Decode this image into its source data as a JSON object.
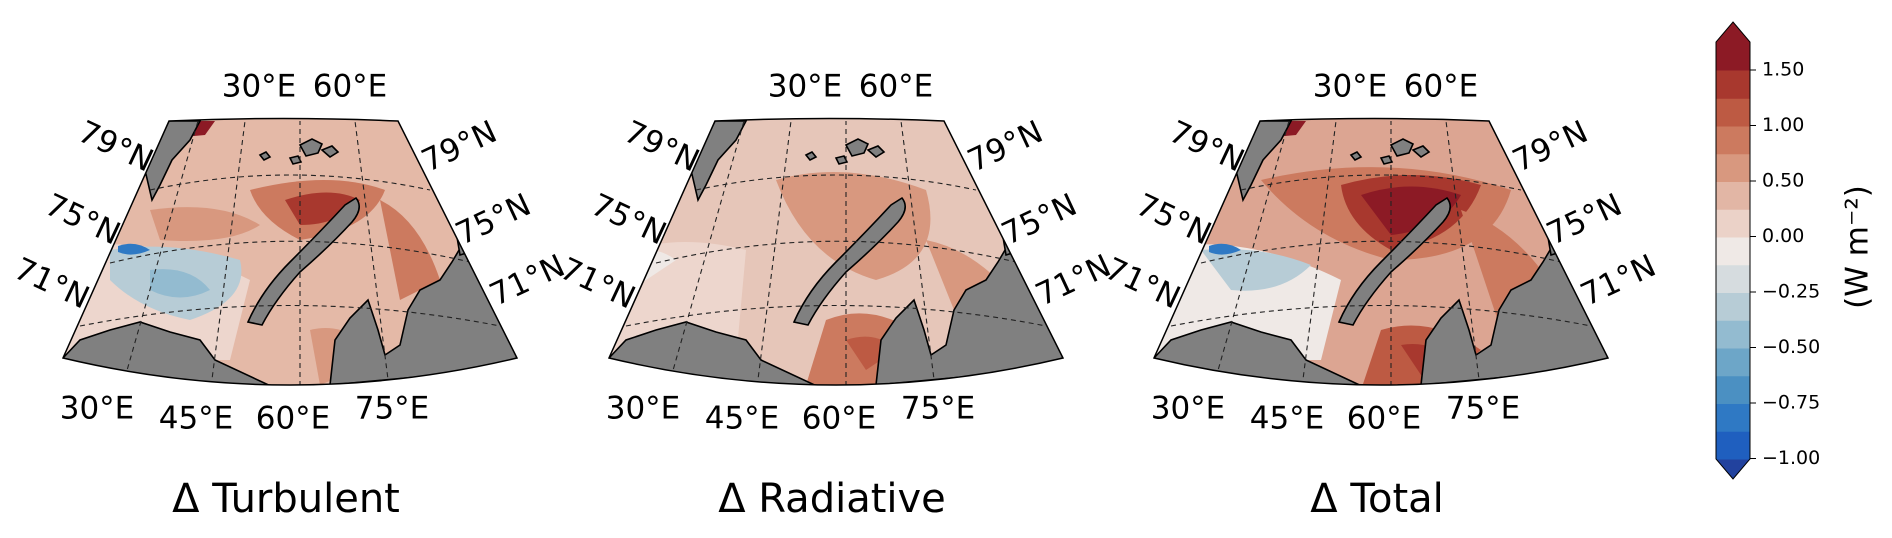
{
  "panels": [
    {
      "title": "Δ Turbulent",
      "top_lon": [
        "30°E",
        "60°E"
      ],
      "bottom_lon": [
        "30°E",
        "45°E",
        "60°E",
        "75°E"
      ],
      "left_lat": [
        "79°N",
        "75°N",
        "71°N"
      ],
      "right_lat": [
        "79°N",
        "75°N",
        "71°N"
      ]
    },
    {
      "title": "Δ Radiative",
      "top_lon": [
        "30°E",
        "60°E"
      ],
      "bottom_lon": [
        "30°E",
        "45°E",
        "60°E",
        "75°E"
      ],
      "left_lat": [
        "79°N",
        "75°N",
        "71°N"
      ],
      "right_lat": [
        "79°N",
        "75°N",
        "71°N"
      ]
    },
    {
      "title": "Δ Total",
      "top_lon": [
        "30°E",
        "60°E"
      ],
      "bottom_lon": [
        "30°E",
        "45°E",
        "60°E",
        "75°E"
      ],
      "left_lat": [
        "79°N",
        "75°N",
        "71°N"
      ],
      "right_lat": [
        "79°N",
        "75°N",
        "71°N"
      ]
    }
  ],
  "colorbar": {
    "label": "(W m⁻²)",
    "ticks": [
      "1.50",
      "1.00",
      "0.50",
      "0.00",
      "−0.25",
      "−0.50",
      "−0.75",
      "−1.00"
    ],
    "colors": [
      "#22429e",
      "#1f5fbf",
      "#2f79c4",
      "#4b90c2",
      "#6da6c8",
      "#93bbd0",
      "#b7ccd6",
      "#d6dcdf",
      "#efe9e6",
      "#ebd2c8",
      "#e2b6a5",
      "#d8987f",
      "#cc7a5f",
      "#bd5a43",
      "#a8382e",
      "#8c1a25"
    ]
  }
}
